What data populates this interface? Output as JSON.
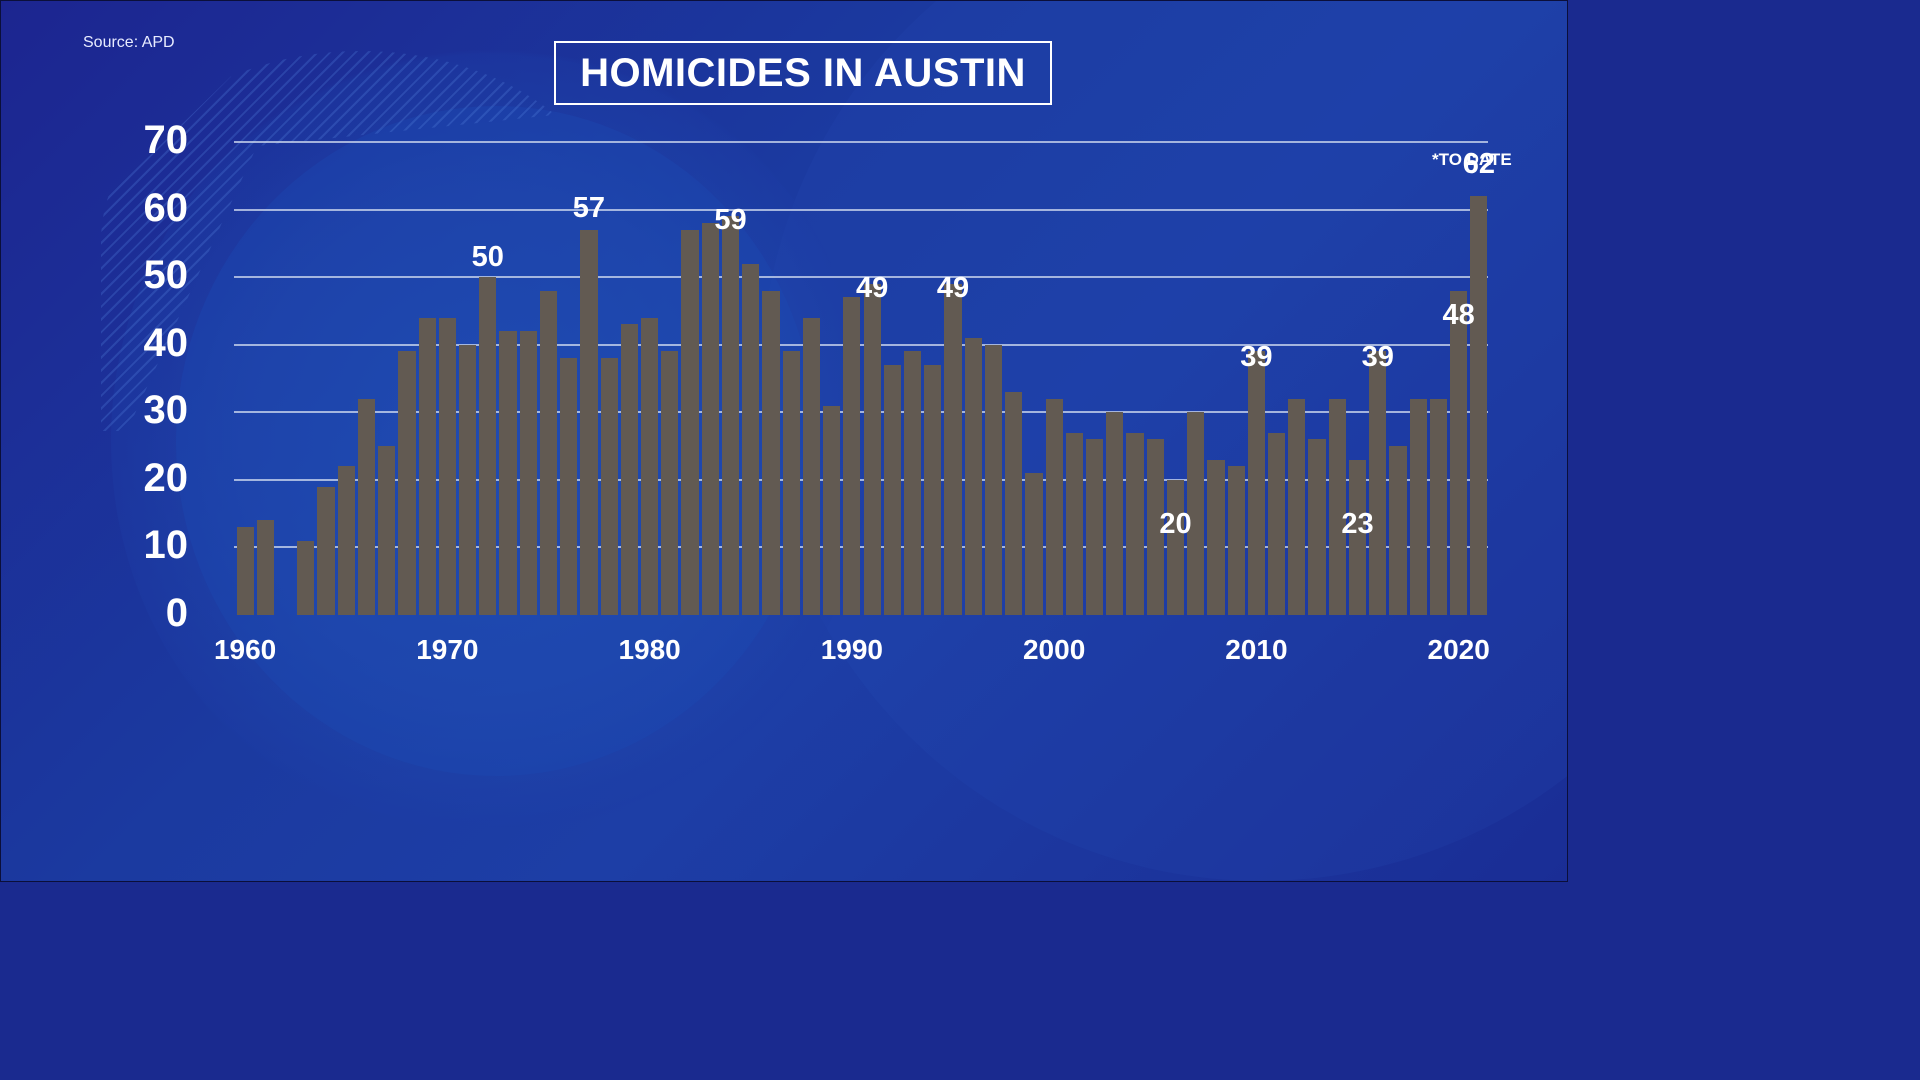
{
  "header": {
    "source": "Source: APD",
    "title": "HOMICIDES IN AUSTIN",
    "note": "*TO DATE"
  },
  "colors": {
    "background": "#1c35a0",
    "bar": "#625a52",
    "text": "#ffffff",
    "gridline": "#d2dcf0"
  },
  "chart_data": {
    "type": "bar",
    "title": "HOMICIDES IN AUSTIN",
    "source": "Source: APD",
    "annotation": "*TO DATE",
    "xlabel": "",
    "ylabel": "",
    "ylim": [
      0,
      70
    ],
    "yticks": [
      0,
      10,
      20,
      30,
      40,
      50,
      60,
      70
    ],
    "xticks": [
      "1960",
      "1970",
      "1980",
      "1990",
      "2000",
      "2010",
      "2020"
    ],
    "grid": true,
    "legend": "none",
    "categories": [
      "1960",
      "1961",
      "1962",
      "1963",
      "1964",
      "1965",
      "1966",
      "1967",
      "1968",
      "1969",
      "1970",
      "1971",
      "1972",
      "1973",
      "1974",
      "1975",
      "1976",
      "1977",
      "1978",
      "1979",
      "1980",
      "1981",
      "1982",
      "1983",
      "1984",
      "1985",
      "1986",
      "1987",
      "1988",
      "1989",
      "1990",
      "1991",
      "1992",
      "1993",
      "1994",
      "1995",
      "1996",
      "1997",
      "1998",
      "1999",
      "2000",
      "2001",
      "2002",
      "2003",
      "2004",
      "2005",
      "2006",
      "2007",
      "2008",
      "2009",
      "2010",
      "2011",
      "2012",
      "2013",
      "2014",
      "2015",
      "2016",
      "2017",
      "2018",
      "2019",
      "2020",
      "2021"
    ],
    "values": [
      13,
      14,
      0,
      11,
      19,
      22,
      32,
      25,
      39,
      44,
      44,
      40,
      50,
      42,
      42,
      48,
      38,
      57,
      38,
      43,
      44,
      39,
      57,
      58,
      59,
      52,
      48,
      39,
      44,
      31,
      47,
      49,
      37,
      39,
      37,
      49,
      41,
      40,
      33,
      21,
      32,
      27,
      26,
      30,
      27,
      26,
      20,
      30,
      23,
      22,
      39,
      27,
      32,
      26,
      32,
      23,
      39,
      25,
      32,
      32,
      48,
      62
    ],
    "data_labels": [
      {
        "year": "1972",
        "value": "50"
      },
      {
        "year": "1977",
        "value": "57"
      },
      {
        "year": "1984",
        "value": "59"
      },
      {
        "year": "1991",
        "value": "49"
      },
      {
        "year": "1995",
        "value": "49"
      },
      {
        "year": "2006",
        "value": "20"
      },
      {
        "year": "2010",
        "value": "39"
      },
      {
        "year": "2015",
        "value": "23"
      },
      {
        "year": "2016",
        "value": "39"
      },
      {
        "year": "2020",
        "value": "48"
      },
      {
        "year": "2021",
        "value": "62"
      }
    ]
  }
}
